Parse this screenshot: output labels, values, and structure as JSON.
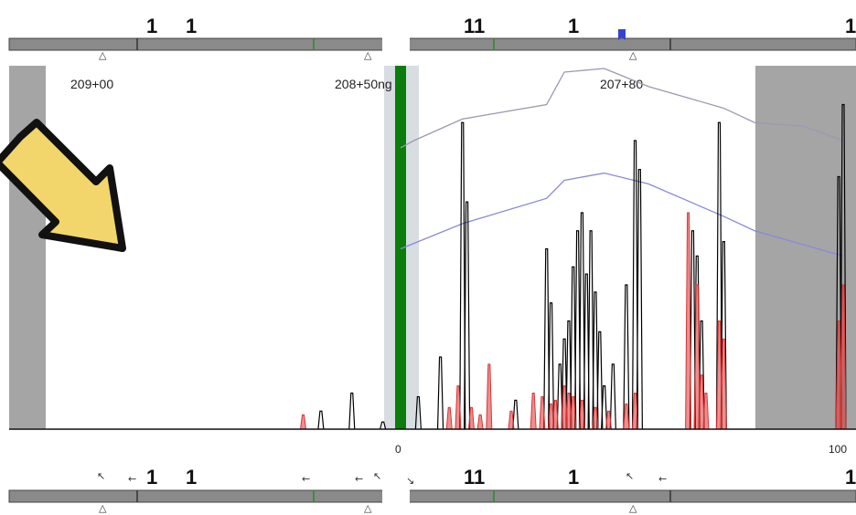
{
  "chart_data": {
    "type": "line",
    "title": "",
    "xlabel": "",
    "ylabel": "",
    "stations": [
      "209+00",
      "208+50ng",
      "207+80"
    ],
    "axis_ticks": [
      "0",
      "100"
    ],
    "top_track_labels": [
      "1",
      "1",
      "11",
      "1",
      "1"
    ],
    "bottom_track_labels": [
      "1",
      "1",
      "11",
      "1",
      "1"
    ],
    "profile_lines": {
      "upper": [
        [
          0,
          0.78
        ],
        [
          3,
          0.8
        ],
        [
          14,
          0.86
        ],
        [
          33,
          0.9
        ],
        [
          37,
          0.99
        ],
        [
          46,
          1.0
        ],
        [
          50,
          0.98
        ],
        [
          56,
          0.95
        ],
        [
          73,
          0.89
        ],
        [
          80,
          0.85
        ],
        [
          91,
          0.84
        ],
        [
          100,
          0.8
        ]
      ],
      "lower": [
        [
          0,
          0.5
        ],
        [
          14,
          0.57
        ],
        [
          33,
          0.64
        ],
        [
          37,
          0.69
        ],
        [
          46,
          0.71
        ],
        [
          56,
          0.68
        ],
        [
          73,
          0.59
        ],
        [
          80,
          0.55
        ],
        [
          100,
          0.48
        ]
      ]
    },
    "series": [
      {
        "color": "#000000",
        "peaks": [
          [
            -18,
            0.05
          ],
          [
            -11,
            0.1
          ],
          [
            -4,
            0.02
          ],
          [
            4,
            0.09
          ],
          [
            9,
            0.2
          ],
          [
            14,
            0.85
          ],
          [
            15,
            0.63
          ],
          [
            26,
            0.08
          ],
          [
            33,
            0.5
          ],
          [
            34,
            0.35
          ],
          [
            36,
            0.18
          ],
          [
            37,
            0.25
          ],
          [
            38,
            0.3
          ],
          [
            39,
            0.45
          ],
          [
            40,
            0.55
          ],
          [
            41,
            0.6
          ],
          [
            42,
            0.43
          ],
          [
            43,
            0.55
          ],
          [
            44,
            0.38
          ],
          [
            45,
            0.27
          ],
          [
            46,
            0.12
          ],
          [
            48,
            0.18
          ],
          [
            51,
            0.4
          ],
          [
            53,
            0.8
          ],
          [
            54,
            0.72
          ],
          [
            66,
            0.55
          ],
          [
            67,
            0.48
          ],
          [
            68,
            0.3
          ],
          [
            72,
            0.85
          ],
          [
            73,
            0.52
          ],
          [
            99,
            0.7
          ],
          [
            100,
            0.9
          ]
        ]
      },
      {
        "color": "#dd3333",
        "peaks": [
          [
            -22,
            0.04
          ],
          [
            11,
            0.06
          ],
          [
            13,
            0.12
          ],
          [
            16,
            0.06
          ],
          [
            18,
            0.04
          ],
          [
            20,
            0.18
          ],
          [
            25,
            0.05
          ],
          [
            30,
            0.1
          ],
          [
            32,
            0.09
          ],
          [
            34,
            0.07
          ],
          [
            35,
            0.08
          ],
          [
            37,
            0.12
          ],
          [
            38,
            0.1
          ],
          [
            39,
            0.09
          ],
          [
            41,
            0.08
          ],
          [
            44,
            0.06
          ],
          [
            47,
            0.05
          ],
          [
            51,
            0.07
          ],
          [
            53,
            0.1
          ],
          [
            65,
            0.6
          ],
          [
            67,
            0.4
          ],
          [
            68,
            0.15
          ],
          [
            69,
            0.1
          ],
          [
            72,
            0.3
          ],
          [
            73,
            0.25
          ],
          [
            99,
            0.3
          ],
          [
            100,
            0.4
          ]
        ]
      }
    ],
    "xlim": [
      -43,
      101
    ],
    "ylim": [
      0,
      1
    ],
    "highlight_x": 0
  },
  "colors": {
    "track": "#8a8a8a",
    "track_dark": "#555555",
    "grey_region": "#a5a5a5",
    "profile": "#9a9ab0",
    "profile_blue": "#8888dd",
    "highlight": "#0a7d0a",
    "arrow_fill": "#f2d66b",
    "arrow_stroke": "#111111"
  }
}
